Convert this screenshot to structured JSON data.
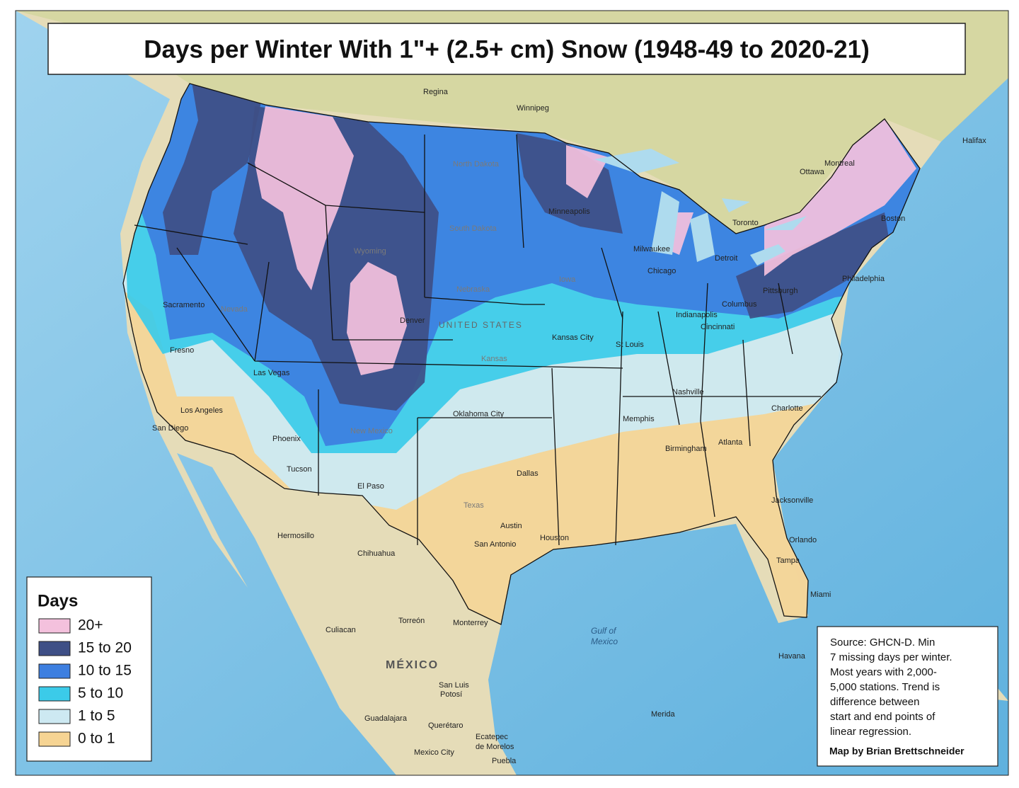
{
  "title": "Days per Winter With 1\"+ (2.5+ cm) Snow (1948-49 to 2020-21)",
  "legend": {
    "title": "Days",
    "items": [
      {
        "label": "20+",
        "color": "#f4c1dd"
      },
      {
        "label": "15 to 20",
        "color": "#3e4f86"
      },
      {
        "label": "10 to 15",
        "color": "#3d7fe0"
      },
      {
        "label": "5 to 10",
        "color": "#3bcbe9"
      },
      {
        "label": "1 to 5",
        "color": "#cde9f2"
      },
      {
        "label": "0 to 1",
        "color": "#f6d493"
      }
    ]
  },
  "source": {
    "lines": [
      "Source: GHCN-D. Min",
      "7 missing days per winter.",
      "Most years with 2,000-",
      "5,000 stations. Trend is",
      "difference between",
      "start and end points of",
      "linear regression."
    ],
    "credit": "Map by Brian Brettschneider"
  },
  "places": [
    "Regina",
    "Winnipeg",
    "North Dakota",
    "South Dakota",
    "Minneapolis",
    "Nebraska",
    "Wyoming",
    "Denver",
    "Kansas City",
    "St Louis",
    "Chicago",
    "Milwaukee",
    "Detroit",
    "Toronto",
    "Ottawa",
    "Montreal",
    "Boston",
    "Pittsburgh",
    "Indianapolis",
    "Cincinnati",
    "Columbus",
    "Nashville",
    "Memphis",
    "Oklahoma City",
    "Dallas",
    "Austin",
    "San Antonio",
    "Houston",
    "Atlanta",
    "Birmingham",
    "Charlotte",
    "Jacksonville",
    "Tampa",
    "Miami",
    "Orlando",
    "Phoenix",
    "Tucson",
    "Los Angeles",
    "San Diego",
    "Las Vegas",
    "Sacramento",
    "Fresno",
    "El Paso",
    "Hermosillo",
    "Chihuahua",
    "Culiacan",
    "Torreón",
    "Monterrey",
    "MÉXICO",
    "San Luis",
    "Potosí",
    "Guadalajara",
    "Querétaro",
    "Ecatepec",
    "de Morelos",
    "Mexico City",
    "Puebla",
    "Merida",
    "Havana",
    "Gulf of",
    "Mexico",
    "Philadelphia",
    "UNITED STATES",
    "Kansas",
    "Texas",
    "New Mexico",
    "Nevada",
    "Iowa",
    "Halifax"
  ]
}
